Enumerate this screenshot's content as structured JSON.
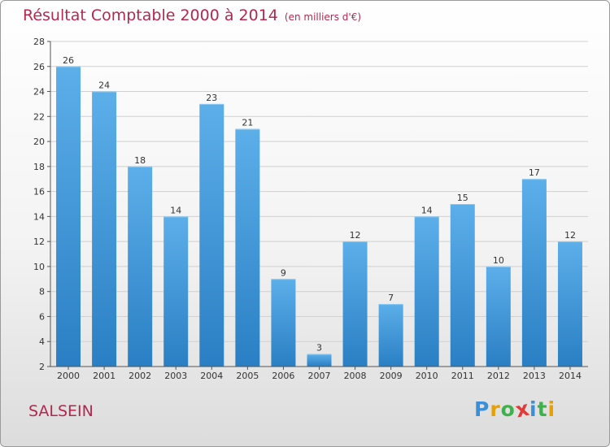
{
  "title": "Résultat Comptable 2000 à 2014",
  "subtitle": "(en milliers d'€)",
  "commune": "SALSEIN",
  "logo": {
    "text": "Proxiti",
    "letters": [
      {
        "char": "P",
        "color": "#3b8fd8"
      },
      {
        "char": "r",
        "color": "#e8a000"
      },
      {
        "char": "o",
        "color": "#3bb34a"
      },
      {
        "char": "x",
        "color": "#e03a3a"
      },
      {
        "char": "i",
        "color": "#3b8fd8"
      },
      {
        "char": "t",
        "color": "#3bb34a"
      },
      {
        "char": "i",
        "color": "#e8a000"
      }
    ]
  },
  "colors": {
    "title": "#b3284f",
    "bar_top": "#5cafe9",
    "bar_bottom": "#2a7fc4",
    "grid": "#d0d0d0",
    "axis": "#555555",
    "text": "#333333"
  },
  "chart_data": {
    "type": "bar",
    "categories": [
      "2000",
      "2001",
      "2002",
      "2003",
      "2004",
      "2005",
      "2006",
      "2007",
      "2008",
      "2009",
      "2010",
      "2011",
      "2012",
      "2013",
      "2014"
    ],
    "values": [
      26,
      24,
      18,
      14,
      23,
      21,
      9,
      3,
      12,
      7,
      14,
      15,
      10,
      17,
      12
    ],
    "ylim": [
      2,
      28
    ],
    "yticks": [
      2,
      4,
      6,
      8,
      10,
      12,
      14,
      16,
      18,
      20,
      22,
      24,
      26,
      28
    ],
    "grid": true,
    "xlabel": "",
    "ylabel": ""
  }
}
